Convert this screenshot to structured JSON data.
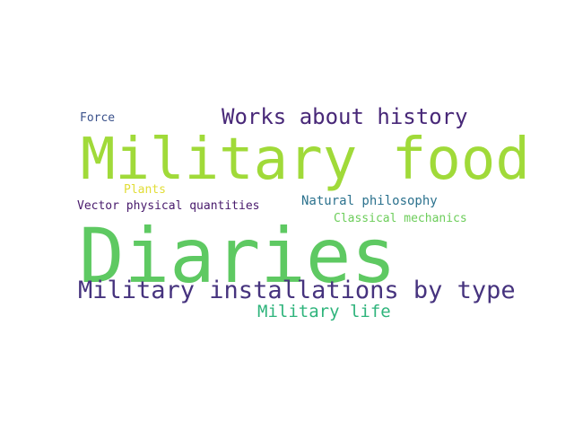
{
  "words": [
    {
      "text": "Diaries",
      "color": "#5ec962"
    },
    {
      "text": "Military food",
      "color": "#a0da39"
    },
    {
      "text": "Military installations by type",
      "color": "#46337e"
    },
    {
      "text": "Works about history",
      "color": "#482878"
    },
    {
      "text": "Military life",
      "color": "#2fb47c"
    },
    {
      "text": "Natural philosophy",
      "color": "#2c728e"
    },
    {
      "text": "Classical mechanics",
      "color": "#6ccd5a"
    },
    {
      "text": "Vector physical quantities",
      "color": "#481a6c"
    },
    {
      "text": "Plants",
      "color": "#e1dd37"
    },
    {
      "text": "Force",
      "color": "#3b528b"
    }
  ]
}
